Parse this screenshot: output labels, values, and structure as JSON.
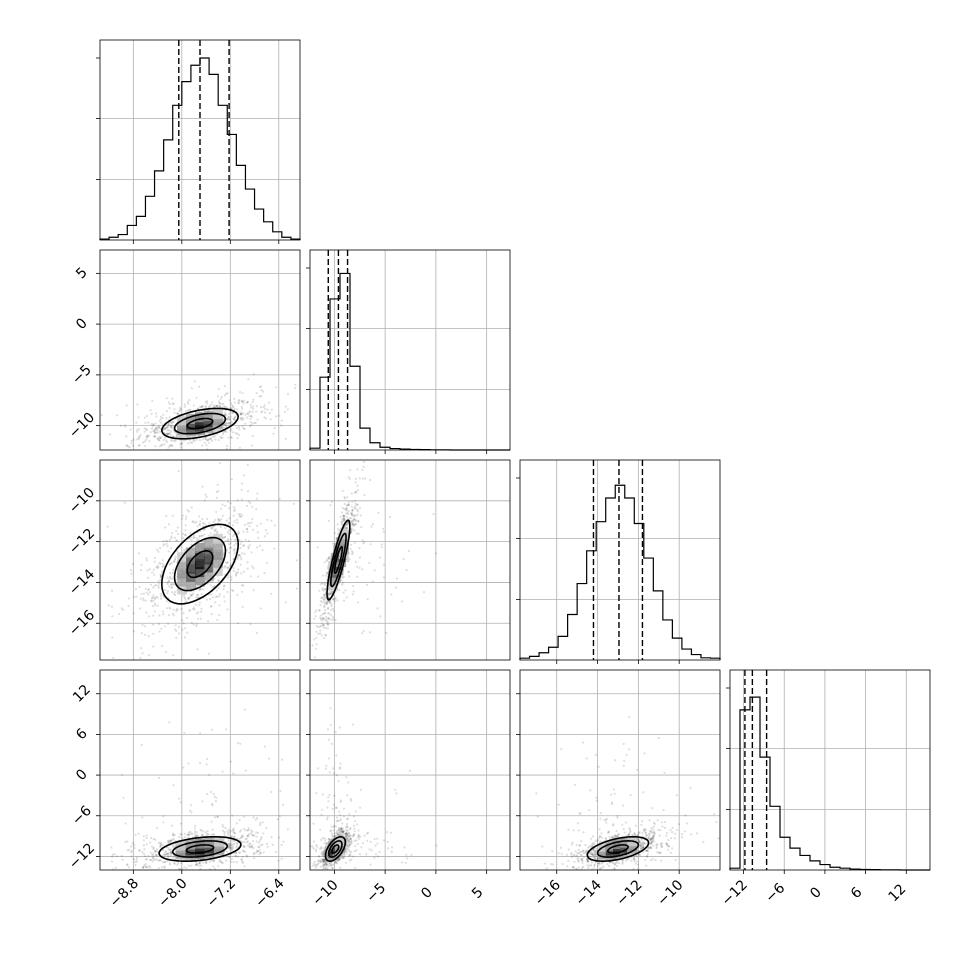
{
  "chart_data": {
    "type": "corner",
    "grid": true,
    "params": [
      {
        "range": [
          -9.35,
          -6.05
        ],
        "ticks": [
          -8.8,
          -8.0,
          -7.2,
          -6.4
        ],
        "tick_labels": [
          "−8.8",
          "−8.0",
          "−7.2",
          "−6.4"
        ],
        "quantiles": [
          -8.05,
          -7.7,
          -7.22
        ],
        "hist": [
          0.005,
          0.015,
          0.03,
          0.08,
          0.13,
          0.24,
          0.38,
          0.55,
          0.74,
          0.87,
          0.96,
          1.0,
          0.91,
          0.74,
          0.58,
          0.41,
          0.28,
          0.17,
          0.1,
          0.045,
          0.015,
          0.005
        ]
      },
      {
        "range": [
          -12.4,
          7.3
        ],
        "ticks": [
          -10,
          -5,
          0,
          5
        ],
        "tick_labels": [
          "−10",
          "−5",
          "0",
          "5"
        ],
        "quantiles": [
          -10.6,
          -9.6,
          -8.7
        ],
        "hist": [
          0.01,
          0.4,
          0.83,
          0.97,
          0.46,
          0.12,
          0.04,
          0.015,
          0.008,
          0.005,
          0.003,
          0.002,
          0.001,
          0.001,
          0.0,
          0.0,
          0.0,
          0.0,
          0.0,
          0.0
        ]
      },
      {
        "range": [
          -17.8,
          -8.0
        ],
        "ticks": [
          -16,
          -14,
          -12,
          -10
        ],
        "tick_labels": [
          "−16",
          "−14",
          "−12",
          "−10"
        ],
        "quantiles": [
          -14.2,
          -12.95,
          -11.8
        ],
        "hist": [
          0.01,
          0.02,
          0.04,
          0.07,
          0.13,
          0.25,
          0.42,
          0.6,
          0.76,
          0.89,
          0.96,
          0.89,
          0.75,
          0.56,
          0.38,
          0.22,
          0.12,
          0.06,
          0.03,
          0.012,
          0.01
        ]
      },
      {
        "range": [
          -14.0,
          15.5
        ],
        "ticks": [
          -12,
          -6,
          0,
          6,
          12
        ],
        "tick_labels": [
          "−12",
          "−6",
          "0",
          "6",
          "12"
        ],
        "quantiles": [
          -11.8,
          -10.7,
          -8.6
        ],
        "hist": [
          0.01,
          0.88,
          0.95,
          0.62,
          0.35,
          0.18,
          0.12,
          0.08,
          0.05,
          0.03,
          0.015,
          0.01,
          0.005,
          0.003,
          0.002,
          0.001,
          0.001,
          0.0,
          0.0,
          0.0
        ]
      }
    ],
    "pairs": [
      {
        "x": 0,
        "y": 1,
        "center": [
          -7.7,
          -9.8
        ],
        "sd": [
          0.42,
          1.0
        ],
        "rho": 0.45
      },
      {
        "x": 0,
        "y": 2,
        "center": [
          -7.7,
          -13.1
        ],
        "sd": [
          0.42,
          1.3
        ],
        "rho": 0.5
      },
      {
        "x": 1,
        "y": 2,
        "center": [
          -9.6,
          -12.9
        ],
        "sd": [
          0.75,
          1.3
        ],
        "rho": 0.85
      },
      {
        "x": 0,
        "y": 3,
        "center": [
          -7.7,
          -10.9
        ],
        "sd": [
          0.45,
          1.2
        ],
        "rho": 0.35
      },
      {
        "x": 1,
        "y": 3,
        "center": [
          -9.9,
          -10.9
        ],
        "sd": [
          0.65,
          1.2
        ],
        "rho": 0.55
      },
      {
        "x": 2,
        "y": 3,
        "center": [
          -13.0,
          -10.9
        ],
        "sd": [
          1.0,
          1.2
        ],
        "rho": 0.5
      }
    ],
    "contour_sigma": [
      0.5,
      1.0,
      1.5
    ],
    "colors": {
      "ink": "#000000",
      "grid": "#b0b0b0",
      "density_dark": "#000000",
      "density_light": "#ffffff"
    }
  }
}
